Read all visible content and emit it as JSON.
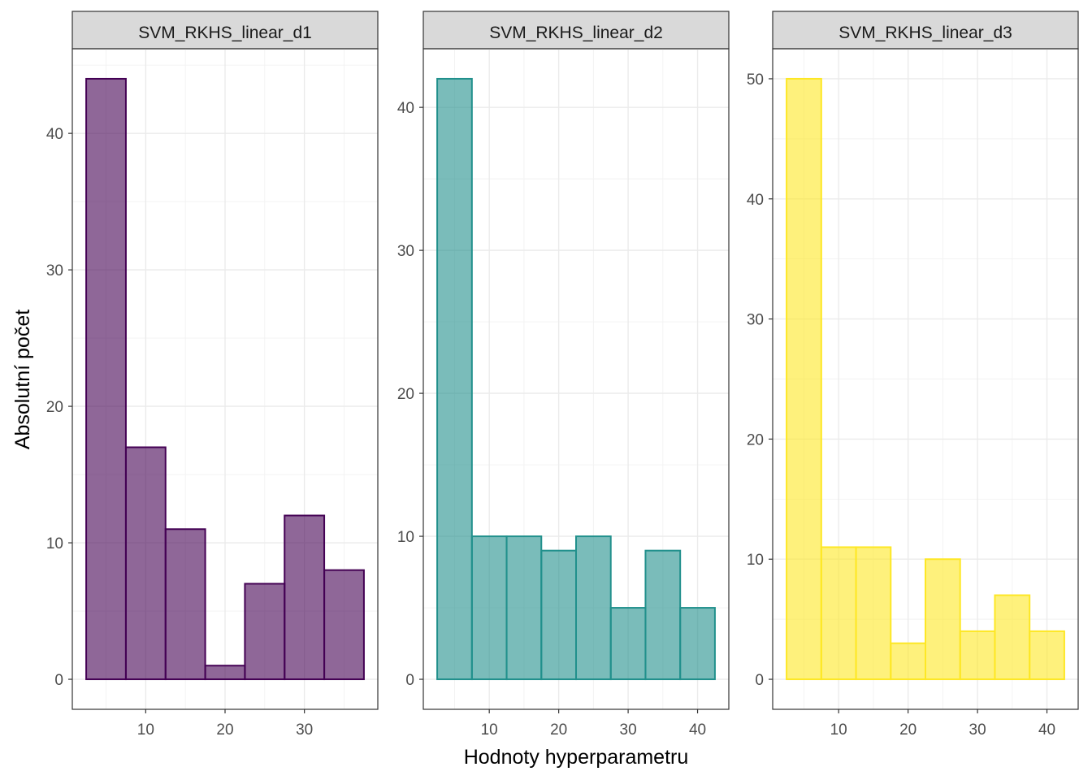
{
  "chart_data": {
    "type": "bar",
    "xlabel": "Hodnoty hyperparametru",
    "ylabel": "Absolutní počet",
    "grid": true,
    "legend": "none",
    "bin_width": 5,
    "panels": [
      {
        "name": "SVM_RKHS_linear_d1",
        "fill": "#440154",
        "outline": "#440154",
        "bin_edges": [
          2.5,
          7.5,
          12.5,
          17.5,
          22.5,
          27.5,
          32.5,
          37.5
        ],
        "values": [
          44,
          17,
          11,
          1,
          7,
          12,
          8
        ],
        "xlim": [
          0.75,
          39.25
        ],
        "ylim": [
          -2.2,
          46.2
        ],
        "xticks": [
          10,
          20,
          30
        ],
        "yticks": [
          0,
          10,
          20,
          30,
          40
        ]
      },
      {
        "name": "SVM_RKHS_linear_d2",
        "fill": "#21908C",
        "outline": "#21908C",
        "bin_edges": [
          2.5,
          7.5,
          12.5,
          17.5,
          22.5,
          27.5,
          32.5,
          37.5,
          42.5
        ],
        "values": [
          42,
          10,
          10,
          9,
          10,
          5,
          9,
          5
        ],
        "xlim": [
          0.5,
          44.5
        ],
        "ylim": [
          -2.1,
          44.1
        ],
        "xticks": [
          10,
          20,
          30,
          40
        ],
        "yticks": [
          0,
          10,
          20,
          30,
          40
        ]
      },
      {
        "name": "SVM_RKHS_linear_d3",
        "fill": "#FDE725",
        "outline": "#FDE725",
        "bin_edges": [
          2.5,
          7.5,
          12.5,
          17.5,
          22.5,
          27.5,
          32.5,
          37.5,
          42.5
        ],
        "values": [
          50,
          11,
          11,
          3,
          10,
          4,
          7,
          4
        ],
        "xlim": [
          0.5,
          44.5
        ],
        "ylim": [
          -2.5,
          52.5
        ],
        "xticks": [
          10,
          20,
          30,
          40
        ],
        "yticks": [
          0,
          10,
          20,
          30,
          40,
          50
        ]
      }
    ]
  }
}
